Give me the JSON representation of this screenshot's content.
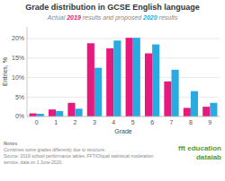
{
  "chart_data": {
    "type": "bar",
    "title": "Grade distribution in GCSE English language",
    "subtitle": "Actual 2019 results and proposed 2020 results",
    "xlabel": "Grade",
    "ylabel": "Entries, %",
    "categories": [
      "0",
      "1",
      "2",
      "3",
      "4",
      "5",
      "6",
      "7",
      "8",
      "9"
    ],
    "series": [
      {
        "name": "2019",
        "color": "#e8197d",
        "values": [
          0.8,
          1.8,
          3.5,
          18.8,
          17.5,
          20.2,
          16.2,
          9.0,
          2.2,
          2.5
        ]
      },
      {
        "name": "2020",
        "color": "#29abe2",
        "values": [
          0.7,
          1.4,
          2.0,
          12.5,
          19.5,
          20.2,
          18.5,
          12.0,
          6.5,
          3.5
        ]
      }
    ],
    "ylim": [
      0,
      23
    ],
    "yticks": [
      {
        "value": 0,
        "label": "0%"
      },
      {
        "value": 5,
        "label": "5%"
      },
      {
        "value": 10,
        "label": "10%"
      },
      {
        "value": 15,
        "label": "15%"
      },
      {
        "value": 20,
        "label": "20%"
      }
    ],
    "grid": true,
    "annotations": [
      {
        "text": "Notes"
      },
      {
        "text": "Combines some grades differently due to structure."
      },
      {
        "text": "Source: 2019 school performance tables. FFT/Ofqual statistical moderation service, data on 1 June 2020."
      },
      {
        "text": "fft education",
        "color": "#5b9a28"
      },
      {
        "text": "datalab",
        "color": "#5b9a28"
      }
    ]
  }
}
